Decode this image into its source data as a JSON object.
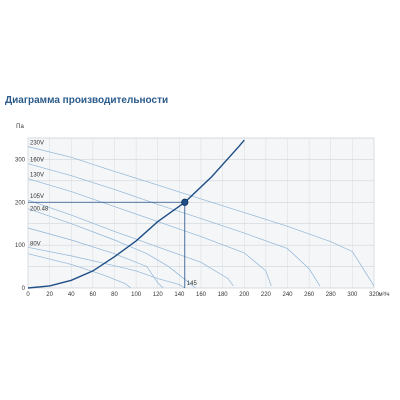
{
  "chart_data": {
    "type": "line",
    "title": "Диаграмма производительности",
    "ylabel": "Па",
    "xlabel": "м³/ч",
    "xlim": [
      0,
      320
    ],
    "ylim": [
      0,
      350
    ],
    "xticks": [
      "0",
      "20",
      "40",
      "60",
      "80",
      "100",
      "120",
      "140",
      "160",
      "180",
      "200",
      "220",
      "240",
      "260",
      "280",
      "300",
      "320"
    ],
    "yticks": [
      "0",
      "100",
      "200",
      "300"
    ],
    "series": [
      {
        "name": "230V",
        "points": [
          [
            0,
            330
          ],
          [
            40,
            305
          ],
          [
            80,
            272
          ],
          [
            120,
            240
          ],
          [
            160,
            208
          ],
          [
            200,
            176
          ],
          [
            240,
            144
          ],
          [
            280,
            108
          ],
          [
            300,
            85
          ],
          [
            320,
            5
          ]
        ]
      },
      {
        "name": "160V",
        "points": [
          [
            0,
            290
          ],
          [
            40,
            262
          ],
          [
            80,
            230
          ],
          [
            120,
            195
          ],
          [
            160,
            162
          ],
          [
            200,
            128
          ],
          [
            240,
            92
          ],
          [
            260,
            45
          ],
          [
            270,
            5
          ]
        ]
      },
      {
        "name": "130V",
        "points": [
          [
            0,
            255
          ],
          [
            40,
            225
          ],
          [
            80,
            190
          ],
          [
            120,
            155
          ],
          [
            160,
            120
          ],
          [
            200,
            82
          ],
          [
            220,
            40
          ],
          [
            225,
            5
          ]
        ]
      },
      {
        "name": "105V",
        "points": [
          [
            0,
            205
          ],
          [
            40,
            170
          ],
          [
            80,
            132
          ],
          [
            120,
            96
          ],
          [
            160,
            60
          ],
          [
            185,
            22
          ],
          [
            190,
            5
          ]
        ]
      },
      {
        "name": "80V",
        "points": [
          [
            0,
            95
          ],
          [
            40,
            75
          ],
          [
            80,
            52
          ],
          [
            100,
            40
          ],
          [
            120,
            22
          ],
          [
            140,
            8
          ],
          [
            145,
            0
          ]
        ]
      }
    ],
    "extra_curves": [
      {
        "points": [
          [
            0,
            185
          ],
          [
            40,
            150
          ],
          [
            80,
            112
          ],
          [
            110,
            80
          ],
          [
            130,
            50
          ],
          [
            150,
            10
          ],
          [
            155,
            0
          ]
        ]
      },
      {
        "points": [
          [
            0,
            140
          ],
          [
            40,
            112
          ],
          [
            80,
            80
          ],
          [
            110,
            50
          ],
          [
            120,
            12
          ],
          [
            125,
            0
          ]
        ]
      },
      {
        "points": [
          [
            0,
            80
          ],
          [
            40,
            55
          ],
          [
            70,
            30
          ],
          [
            90,
            10
          ],
          [
            95,
            0
          ]
        ]
      }
    ],
    "system_curve": {
      "points": [
        [
          0,
          0
        ],
        [
          20,
          5
        ],
        [
          40,
          18
        ],
        [
          60,
          40
        ],
        [
          80,
          73
        ],
        [
          100,
          110
        ],
        [
          120,
          155
        ],
        [
          145,
          200
        ],
        [
          170,
          260
        ],
        [
          195,
          330
        ],
        [
          200,
          345
        ]
      ]
    },
    "operating_point": {
      "x": 145,
      "y": 200,
      "label": "200.48",
      "x_label": "145"
    }
  }
}
